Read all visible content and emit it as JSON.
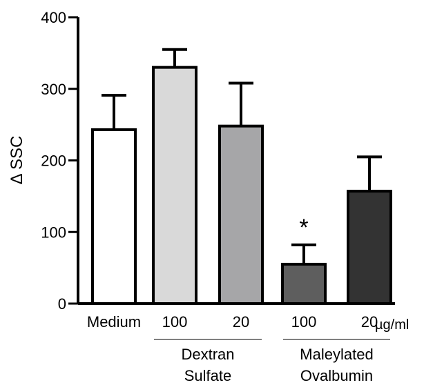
{
  "chart_data": {
    "type": "bar",
    "ylabel": "Δ SSC",
    "ylim": [
      0,
      400
    ],
    "yticks": [
      "0",
      "100",
      "200",
      "300",
      "400"
    ],
    "categories": [
      "Medium",
      "100",
      "20",
      "100",
      "20"
    ],
    "values": [
      243,
      330,
      248,
      55,
      157
    ],
    "errors": [
      48,
      25,
      60,
      27,
      48
    ],
    "bar_colors": [
      "#ffffff",
      "#d9d9d9",
      "#a6a6a8",
      "#5e5e5e",
      "#333333"
    ],
    "groups": [
      {
        "label_line1": "Dextran",
        "label_line2": "Sulfate",
        "categories": [
          1,
          2
        ]
      },
      {
        "label_line1": "Maleylated",
        "label_line2": "Ovalbumin",
        "categories": [
          3,
          4
        ]
      }
    ],
    "unit": "µg/ml",
    "annotations": [
      {
        "category": 3,
        "text": "*"
      }
    ],
    "grid": false,
    "legend": false
  }
}
